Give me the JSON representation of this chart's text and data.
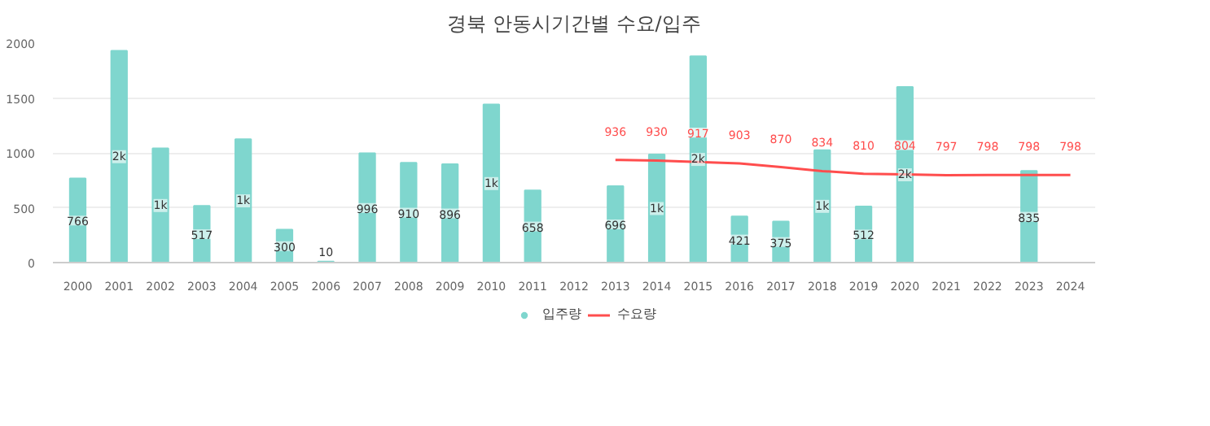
{
  "chart_data": {
    "type": "bar",
    "title": "경북 안동시기간별 수요/입주",
    "categories": [
      "2000",
      "2001",
      "2002",
      "2003",
      "2004",
      "2005",
      "2006",
      "2007",
      "2008",
      "2009",
      "2010",
      "2011",
      "2012",
      "2013",
      "2014",
      "2015",
      "2016",
      "2017",
      "2018",
      "2019",
      "2020",
      "2021",
      "2022",
      "2023",
      "2024"
    ],
    "series": [
      {
        "name": "입주량",
        "color": "#7fd6ce",
        "values": [
          766,
          1930,
          1040,
          517,
          1125,
          300,
          10,
          996,
          910,
          896,
          1440,
          658,
          null,
          696,
          985,
          1880,
          421,
          375,
          1025,
          512,
          1600,
          null,
          null,
          835,
          null
        ],
        "value_labels": [
          "766",
          "2k",
          "1k",
          "517",
          "1k",
          "300",
          "10",
          "996",
          "910",
          "896",
          "1k",
          "658",
          null,
          "696",
          "1k",
          "2k",
          "421",
          "375",
          "1k",
          "512",
          "2k",
          null,
          null,
          "835",
          null
        ]
      },
      {
        "name": "수요량",
        "type": "line",
        "color": "#ff4d4d",
        "data_labels": true,
        "values": [
          null,
          null,
          null,
          null,
          null,
          null,
          null,
          null,
          null,
          null,
          null,
          null,
          null,
          936,
          930,
          917,
          903,
          870,
          834,
          810,
          804,
          797,
          798,
          798,
          798
        ]
      }
    ],
    "ylim": [
      0,
      2000
    ],
    "yticks": [
      0,
      500,
      1000,
      1500,
      2000
    ],
    "grid": "y",
    "legend": "bottom"
  }
}
